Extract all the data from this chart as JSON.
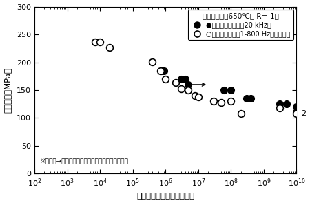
{
  "xlabel": "破断までの繰返し数（回）",
  "ylabel": "応力振幅（MPa）",
  "ylim": [
    0,
    300
  ],
  "yticks": [
    0,
    50,
    100,
    150,
    200,
    250,
    300
  ],
  "legend_title": "ボイラー材（650℃， R=-1）",
  "legend_filled": "●：本研究の結果（20 kHz）",
  "legend_open": "○：比較データ（1-800 Hz，小林ら）",
  "note": "※矢印（→）付のプロット点は壊れなかった試験片",
  "filled_points": [
    [
      800000,
      185
    ],
    [
      900000,
      185
    ],
    [
      3000000,
      170
    ],
    [
      4000000,
      170
    ],
    [
      5000000,
      160
    ],
    [
      60000000,
      150
    ],
    [
      100000000,
      150
    ],
    [
      300000000,
      135
    ],
    [
      400000000,
      135
    ],
    [
      3000000000,
      125
    ],
    [
      5000000000,
      125
    ],
    [
      10000000000,
      120
    ],
    [
      10000000000,
      110
    ]
  ],
  "open_points": [
    [
      7000,
      237
    ],
    [
      10000,
      237
    ],
    [
      20000,
      226
    ],
    [
      400000,
      201
    ],
    [
      700000,
      185
    ],
    [
      1000000,
      170
    ],
    [
      2000000,
      163
    ],
    [
      3000000,
      152
    ],
    [
      5000000,
      150
    ],
    [
      8000000,
      140
    ],
    [
      10000000,
      138
    ],
    [
      30000000,
      130
    ],
    [
      50000000,
      128
    ],
    [
      100000000,
      130
    ],
    [
      200000000,
      108
    ],
    [
      3000000000,
      118
    ],
    [
      10000000000,
      108
    ]
  ],
  "filled_arrow_points": [
    [
      5000000,
      160
    ],
    [
      10000000000,
      110
    ]
  ],
  "open_arrow_points": [
    [
      3000000000,
      118
    ],
    [
      10000000000,
      108
    ]
  ],
  "background_color": "#ffffff",
  "marker_size": 7
}
